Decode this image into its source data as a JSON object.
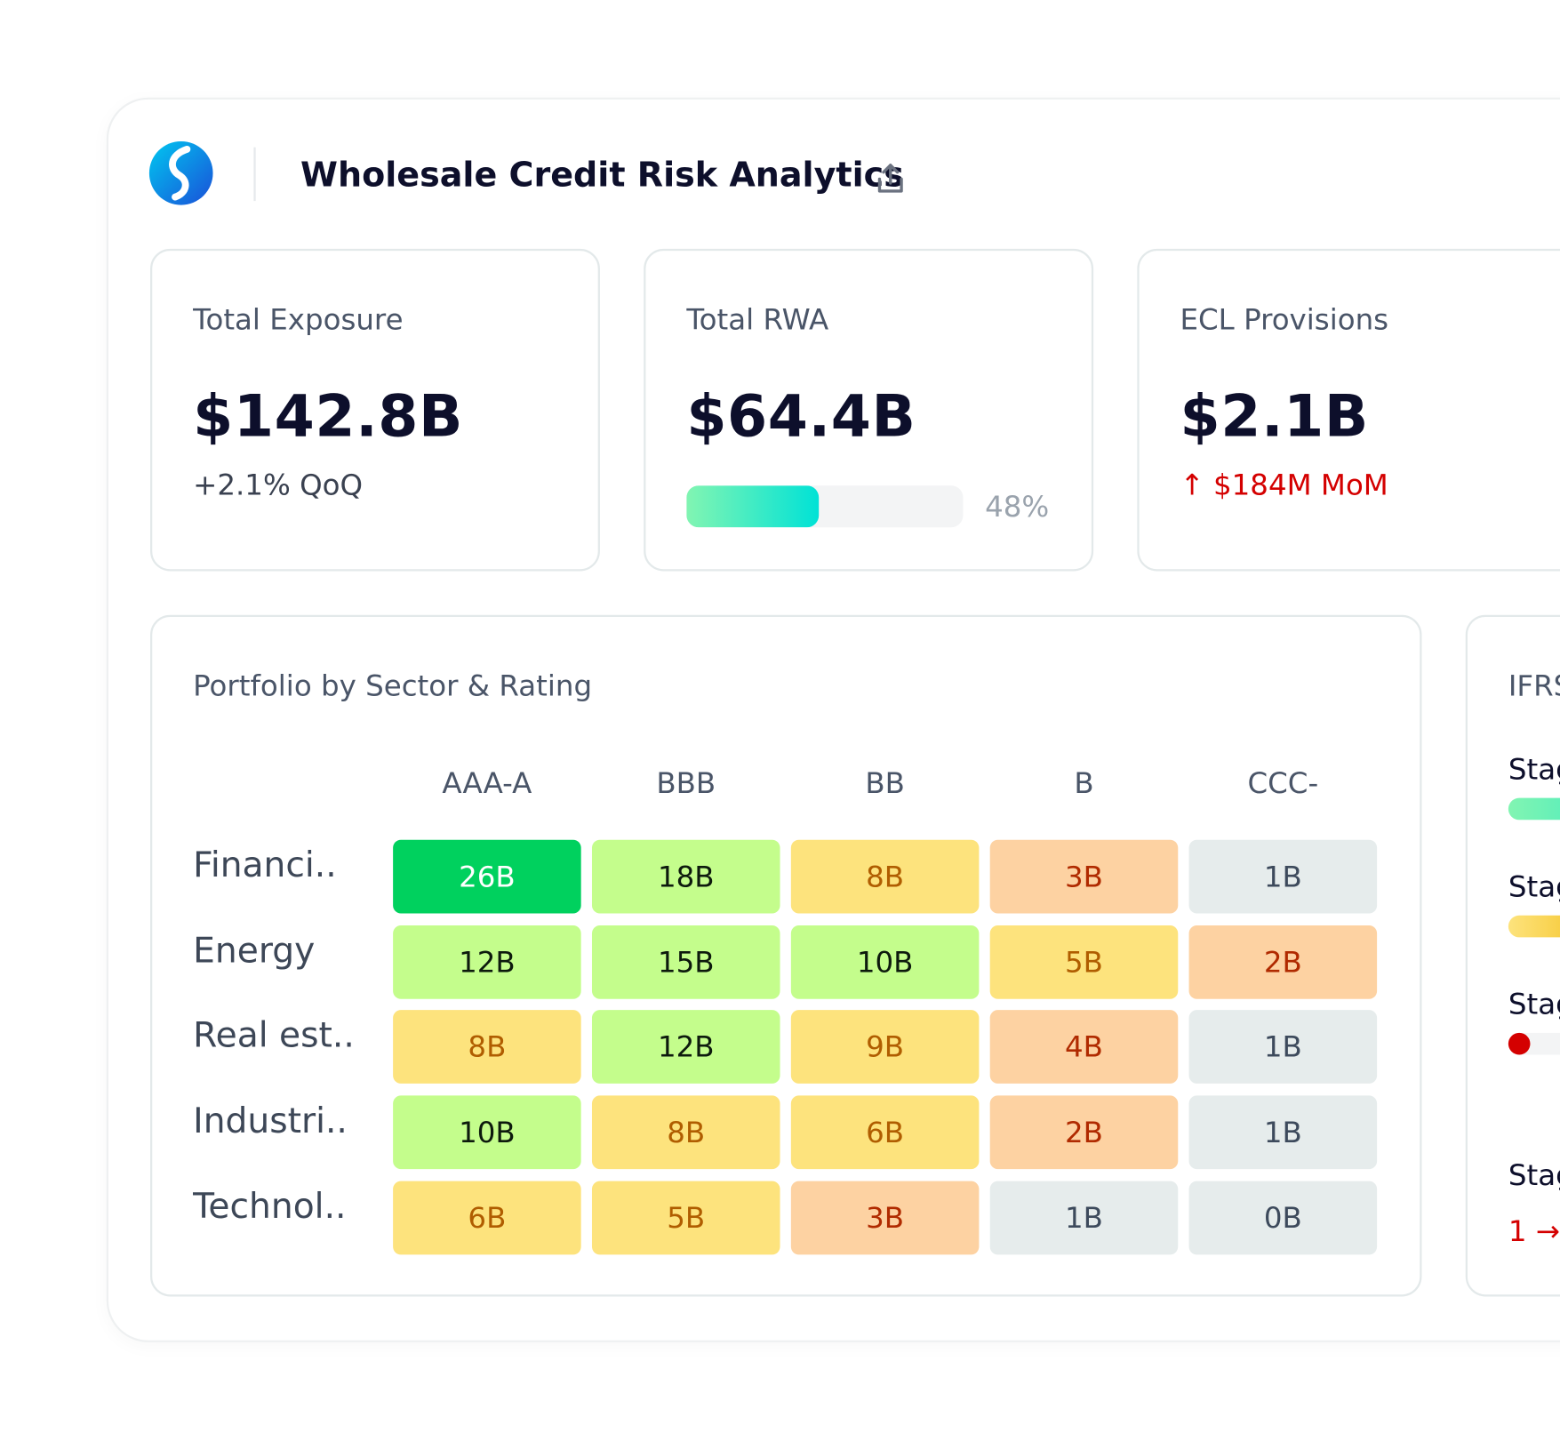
{
  "header": {
    "title": "Wholesale Credit Risk Analytics"
  },
  "cards": [
    {
      "label": "Total Exposure",
      "value": "$142.8B",
      "delta": "+2.1% QoQ"
    },
    {
      "label": "Total RWA",
      "value": "$64.4B",
      "bar": {
        "value": 48,
        "label": "48%"
      }
    },
    {
      "label": "ECL Provisions",
      "value": "$2.1B",
      "delta": "↑ $184M MoM"
    }
  ],
  "heatmap": {
    "title": "Portfolio by Sector & Rating",
    "columns": [
      "AAA-A",
      "BBB",
      "BB",
      "B",
      "CCC-"
    ],
    "rows": [
      {
        "label": "Financi..",
        "cells": [
          {
            "text": "26B",
            "color": "#00d15e"
          },
          {
            "text": "18B",
            "color": "#c4fd8c"
          },
          {
            "text": "8B",
            "color": "#fde37d"
          },
          {
            "text": "3B",
            "color": "#fdd2a2"
          },
          {
            "text": "1B",
            "color": "#e6ecec"
          }
        ]
      },
      {
        "label": "Energy",
        "cells": [
          {
            "text": "12B",
            "color": "#c4fd8c"
          },
          {
            "text": "15B",
            "color": "#c4fd8c"
          },
          {
            "text": "10B",
            "color": "#c4fd8c"
          },
          {
            "text": "5B",
            "color": "#fde37d"
          },
          {
            "text": "2B",
            "color": "#fdd2a2"
          }
        ]
      },
      {
        "label": "Real est..",
        "cells": [
          {
            "text": "8B",
            "color": "#fde37d"
          },
          {
            "text": "12B",
            "color": "#c4fd8c"
          },
          {
            "text": "9B",
            "color": "#fde37d"
          },
          {
            "text": "4B",
            "color": "#fdd2a2"
          },
          {
            "text": "1B",
            "color": "#e6ecec"
          }
        ]
      },
      {
        "label": "Industri..",
        "cells": [
          {
            "text": "10B",
            "color": "#c4fd8c"
          },
          {
            "text": "8B",
            "color": "#fde37d"
          },
          {
            "text": "6B",
            "color": "#fde37d"
          },
          {
            "text": "2B",
            "color": "#fdd2a2"
          },
          {
            "text": "1B",
            "color": "#e6ecec"
          }
        ]
      },
      {
        "label": "Technol..",
        "cells": [
          {
            "text": "6B",
            "color": "#fde37d"
          },
          {
            "text": "5B",
            "color": "#fde37d"
          },
          {
            "text": "3B",
            "color": "#fdd2a2"
          },
          {
            "text": "1B",
            "color": "#e6ecec"
          },
          {
            "text": "0B",
            "color": "#e6ecec"
          }
        ]
      }
    ]
  },
  "staging": {
    "title": "IFRS",
    "items": [
      "Stag",
      "Stag",
      "Stag",
      "Stag"
    ],
    "note": "1 →"
  }
}
